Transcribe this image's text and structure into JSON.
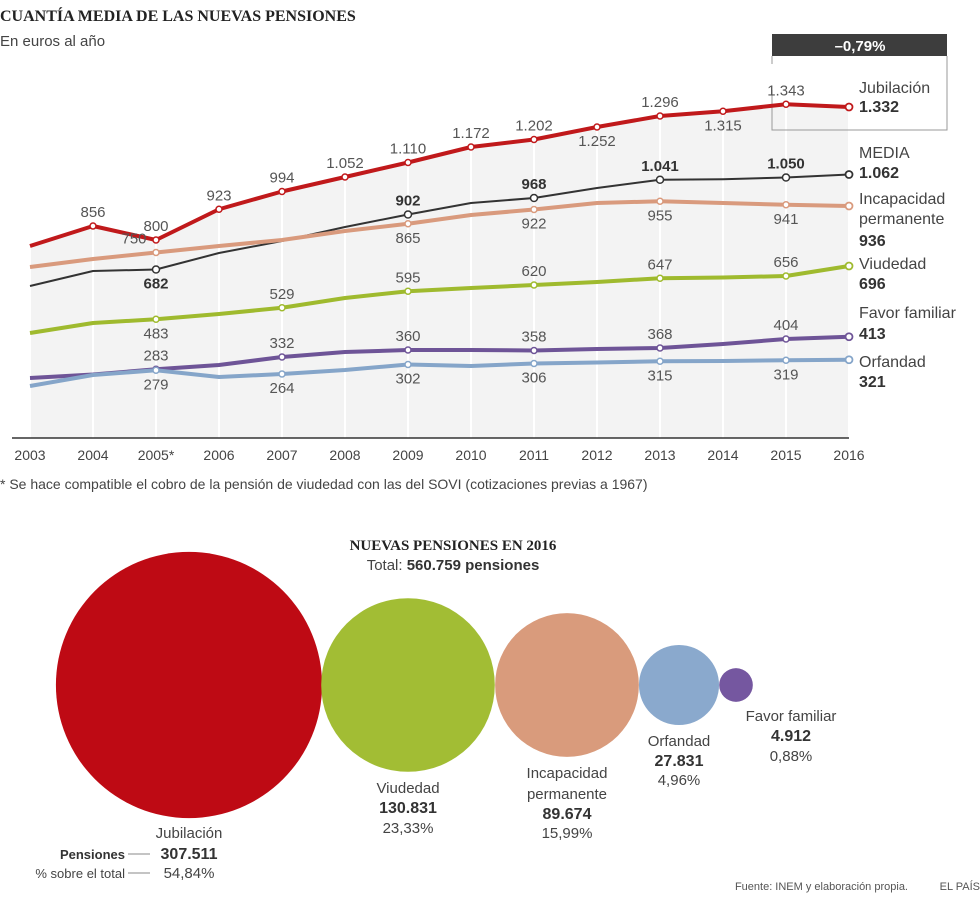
{
  "chart_data": [
    {
      "type": "line",
      "title": "CUANTÍA MEDIA DE LAS NUEVAS PENSIONES",
      "subtitle": "En euros al año",
      "x": [
        "2003",
        "2004",
        "2005*",
        "2006",
        "2007",
        "2008",
        "2009",
        "2010",
        "2011",
        "2012",
        "2013",
        "2014",
        "2015",
        "2016"
      ],
      "ylim": [
        0,
        1400
      ],
      "grid": "vertical",
      "series": [
        {
          "name": "Jubilación",
          "end_label": "1.332",
          "color": "#c0191b",
          "values": [
            776,
            856,
            800,
            923,
            994,
            1052,
            1110,
            1172,
            1202,
            1252,
            1296,
            1315,
            1343,
            1332
          ],
          "labels": {
            "2004": "856",
            "2005*": "800",
            "2006": "923",
            "2007": "994",
            "2008": "1.052",
            "2009": "1.110",
            "2010": "1.172",
            "2011": "1.202",
            "2012": "1.252",
            "2013": "1.296",
            "2014": "1.315",
            "2015": "1.343"
          }
        },
        {
          "name": "MEDIA",
          "end_label": "1.062",
          "color": "#333333",
          "values": [
            616,
            676,
            682,
            748,
            796,
            852,
            902,
            948,
            968,
            1008,
            1041,
            1043,
            1050,
            1062
          ],
          "labels": {
            "2005*": "682",
            "2009": "902",
            "2011": "968",
            "2013": "1.041",
            "2015": "1.050"
          }
        },
        {
          "name": "Incapacidad permanente",
          "end_label": "936",
          "color": "#d99a7d",
          "values": [
            692,
            724,
            750,
            776,
            800,
            836,
            865,
            900,
            922,
            948,
            955,
            948,
            941,
            936
          ],
          "labels": {
            "2005*": "750",
            "2009": "865",
            "2011": "922",
            "2013": "955",
            "2015": "941"
          }
        },
        {
          "name": "Viudedad",
          "end_label": "696",
          "color": "#9fba2e",
          "values": [
            428,
            468,
            483,
            504,
            529,
            568,
            595,
            608,
            620,
            632,
            647,
            650,
            656,
            696
          ],
          "labels": {
            "2005*": "483",
            "2007": "529",
            "2009": "595",
            "2011": "620",
            "2013": "647",
            "2015": "656"
          }
        },
        {
          "name": "Favor familiar",
          "end_label": "413",
          "color": "#6e5497",
          "values": [
            248,
            262,
            283,
            300,
            332,
            352,
            360,
            360,
            358,
            364,
            368,
            384,
            404,
            413
          ],
          "labels": {
            "2005*": "283",
            "2007": "332",
            "2009": "360",
            "2011": "358",
            "2013": "368",
            "2015": "404"
          }
        },
        {
          "name": "Orfandad",
          "end_label": "321",
          "color": "#85a5c9",
          "values": [
            216,
            260,
            279,
            252,
            264,
            280,
            302,
            296,
            306,
            310,
            315,
            316,
            319,
            321
          ],
          "labels": {
            "2005*": "279",
            "2007": "264",
            "2009": "302",
            "2011": "306",
            "2013": "315",
            "2015": "319"
          }
        }
      ],
      "annotation": "–0,79%",
      "footnote": "* Se hace compatible el cobro de la pensión de viudedad con las del SOVI (cotizaciones previas a 1967)"
    },
    {
      "type": "bubble",
      "title": "NUEVAS PENSIONES EN 2016",
      "subtitle_prefix": "Total: ",
      "subtitle_value": "560.759 pensiones",
      "row_labels": {
        "count": "Pensiones",
        "share": "% sobre el total"
      },
      "items": [
        {
          "name": "Jubilación",
          "value": 307511,
          "value_label": "307.511",
          "share": "54,84%",
          "color": "#be0a14"
        },
        {
          "name": "Viudedad",
          "value": 130831,
          "value_label": "130.831",
          "share": "23,33%",
          "color": "#a2bd34"
        },
        {
          "name": "Incapacidad permanente",
          "value": 89674,
          "value_label": "89.674",
          "share": "15,99%",
          "color": "#d99b7c"
        },
        {
          "name": "Orfandad",
          "value": 27831,
          "value_label": "27.831",
          "share": "4,96%",
          "color": "#8aa9cd"
        },
        {
          "name": "Favor familiar",
          "value": 4912,
          "value_label": "4.912",
          "share": "0,88%",
          "color": "#7557a0"
        }
      ]
    }
  ],
  "footer": {
    "source": "Fuente: INEM y elaboración propia.",
    "brand": "EL PAÍS"
  }
}
